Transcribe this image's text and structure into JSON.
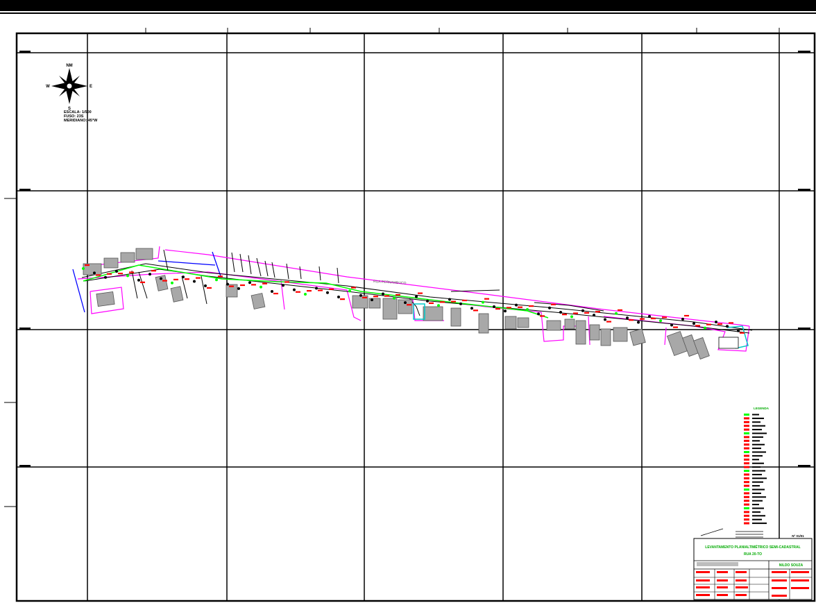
{
  "north_arrow": {
    "north_label": "NM",
    "south_label": "S",
    "east_label": "E",
    "west_label": "W",
    "notes": [
      "ESCALA: 1/500",
      "FUSO: 23S",
      "MERIDIANO: 45°W"
    ]
  },
  "street_label": "RUA PERNAMBUCO",
  "legend": {
    "title": "LEGENDA"
  },
  "title_block": {
    "sheet_number": "Nº 01/01",
    "project_title": "LEVANTAMENTO PLANIALTIMÉTRICO SEMI-CADASTRAL",
    "subtitle": "RUA 20-TO",
    "responsible": "NILDO SOUZA"
  },
  "colors": {
    "grid": "#000000",
    "lot_boundary": "#ff00ff",
    "road_edge_blue": "#0000ff",
    "vegetation": "#00ff00",
    "points": "#ff0000",
    "buildings": "#999999",
    "water": "#00ffff"
  }
}
